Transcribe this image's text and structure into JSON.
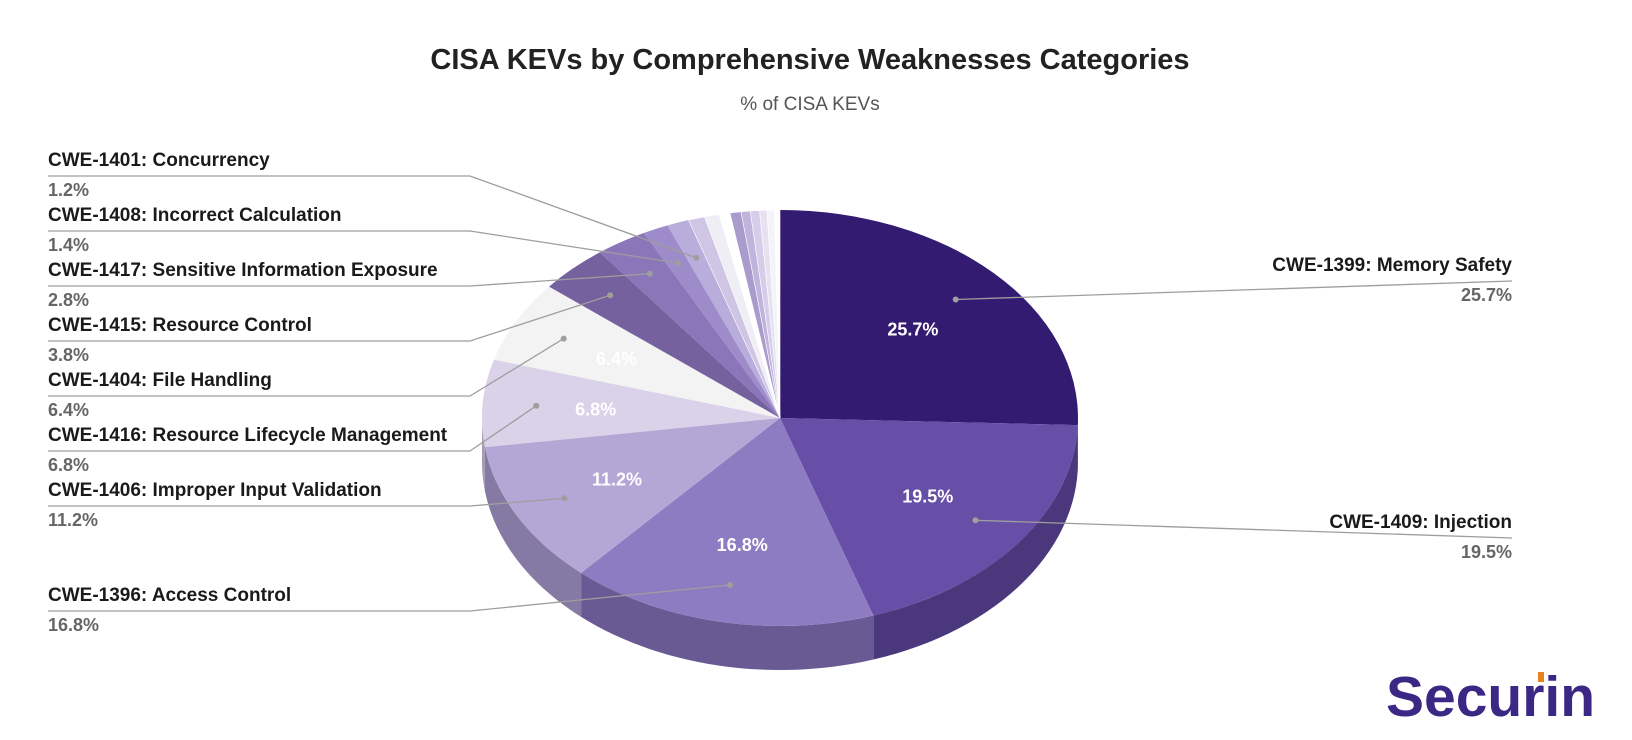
{
  "chart_data": {
    "type": "pie",
    "title": "CISA KEVs by Comprehensive Weaknesses Categories",
    "subtitle": "% of CISA KEVs",
    "slices": [
      {
        "name": "CWE-1399: Memory Safety",
        "value": 25.7,
        "label": "25.7%",
        "color": "#341b72",
        "side": "#2a1560"
      },
      {
        "name": "CWE-1409: Injection",
        "value": 19.5,
        "label": "19.5%",
        "color": "#674ea7",
        "side": "#4b377c"
      },
      {
        "name": "CWE-1396: Access Control",
        "value": 16.8,
        "label": "16.8%",
        "color": "#8e7cc3",
        "side": "#695a93"
      },
      {
        "name": "CWE-1406: Improper Input Validation",
        "value": 11.2,
        "label": "11.2%",
        "color": "#b4a7d6",
        "side": "#857aa3"
      },
      {
        "name": "CWE-1416: Resource Lifecycle Management",
        "value": 6.8,
        "label": "6.8%",
        "color": "#d9d2e9",
        "side": "#a49cb6"
      },
      {
        "name": "CWE-1404: File Handling",
        "value": 6.4,
        "label": "6.4%",
        "color": "#f3f3f3",
        "side": "#bdbdbd"
      },
      {
        "name": "CWE-1415: Resource Control",
        "value": 3.8,
        "label": "3.8%",
        "color": "#76619f",
        "side": "#594979"
      },
      {
        "name": "CWE-1417: Sensitive Information Exposure",
        "value": 2.8,
        "label": "2.8%",
        "color": "#8a76b8",
        "side": "#67588b"
      },
      {
        "name": "CWE-1408: Incorrect Calculation",
        "value": 1.4,
        "label": "1.4%",
        "color": "#9d8cc9",
        "side": "#766999"
      },
      {
        "name": "CWE-1401: Concurrency",
        "value": 1.2,
        "label": "1.2%",
        "color": "#b9addb",
        "side": "#8b82a6"
      },
      {
        "name": "",
        "value": 0.9,
        "label": "",
        "color": "#cfc6e6",
        "side": "#9c95ae"
      },
      {
        "name": "",
        "value": 0.8,
        "label": "",
        "color": "#efeef5",
        "side": "#b4b3ba"
      },
      {
        "name": "",
        "value": 0.6,
        "label": "",
        "color": "#ffffff",
        "side": "#c4c4c4"
      },
      {
        "name": "",
        "value": 0.6,
        "label": "",
        "color": "#a99bcc",
        "side": "#7f759a"
      },
      {
        "name": "",
        "value": 0.5,
        "label": "",
        "color": "#bfb4dc",
        "side": "#9088a6"
      },
      {
        "name": "",
        "value": 0.5,
        "label": "",
        "color": "#d5cde9",
        "side": "#a09ab0"
      },
      {
        "name": "",
        "value": 0.4,
        "label": "",
        "color": "#e6e1f1",
        "side": "#aeaab6"
      },
      {
        "name": "",
        "value": 0.4,
        "label": "",
        "color": "#f5f3fa",
        "side": "#b9b7bd"
      },
      {
        "name": "",
        "value": 0.3,
        "label": "",
        "color": "#ffffff",
        "side": "#c8c8c8"
      }
    ],
    "legend_position": "left-right callouts"
  },
  "brand": {
    "logo_text": "Securin",
    "logo_color": "#3b2784",
    "accent": "#e8821e"
  }
}
